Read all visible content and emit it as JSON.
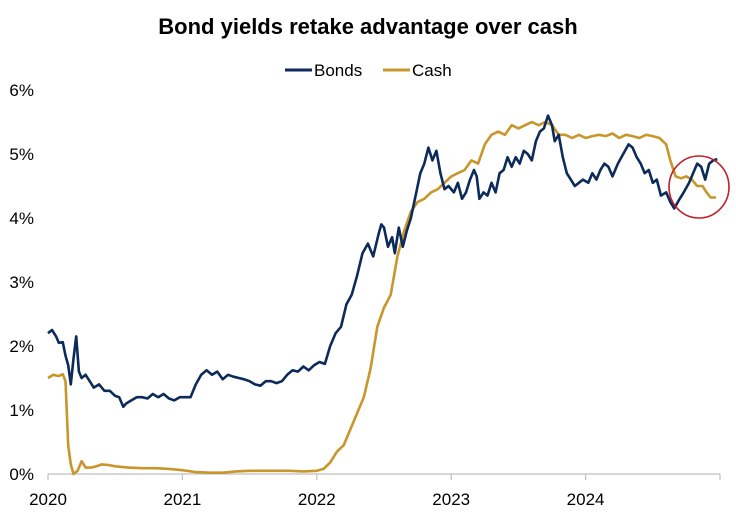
{
  "chart_data": {
    "type": "line",
    "title": "Bond yields retake advantage over cash",
    "xlabel": "",
    "ylabel": "",
    "x_ticks": [
      "2020",
      "2021",
      "2022",
      "2023",
      "2024"
    ],
    "y_ticks": [
      "0%",
      "1%",
      "2%",
      "3%",
      "4%",
      "5%",
      "6%"
    ],
    "xlim": [
      2020.0,
      2025.0
    ],
    "ylim": [
      0,
      6
    ],
    "grid": false,
    "legend_position": "top-center",
    "annotation": "red circle highlighting late-2024 crossover",
    "series": [
      {
        "name": "Bonds",
        "color": "#0c2a5a",
        "points": [
          [
            2020.0,
            2.2
          ],
          [
            2020.03,
            2.25
          ],
          [
            2020.06,
            2.15
          ],
          [
            2020.08,
            2.05
          ],
          [
            2020.11,
            2.06
          ],
          [
            2020.13,
            1.85
          ],
          [
            2020.15,
            1.7
          ],
          [
            2020.17,
            1.4
          ],
          [
            2020.19,
            1.8
          ],
          [
            2020.21,
            2.15
          ],
          [
            2020.23,
            1.6
          ],
          [
            2020.25,
            1.5
          ],
          [
            2020.28,
            1.55
          ],
          [
            2020.31,
            1.45
          ],
          [
            2020.34,
            1.35
          ],
          [
            2020.38,
            1.4
          ],
          [
            2020.42,
            1.3
          ],
          [
            2020.46,
            1.3
          ],
          [
            2020.5,
            1.22
          ],
          [
            2020.53,
            1.2
          ],
          [
            2020.56,
            1.05
          ],
          [
            2020.58,
            1.1
          ],
          [
            2020.62,
            1.15
          ],
          [
            2020.66,
            1.2
          ],
          [
            2020.7,
            1.2
          ],
          [
            2020.74,
            1.18
          ],
          [
            2020.78,
            1.25
          ],
          [
            2020.82,
            1.2
          ],
          [
            2020.86,
            1.25
          ],
          [
            2020.9,
            1.18
          ],
          [
            2020.94,
            1.15
          ],
          [
            2020.98,
            1.2
          ],
          [
            2021.02,
            1.2
          ],
          [
            2021.06,
            1.2
          ],
          [
            2021.1,
            1.4
          ],
          [
            2021.14,
            1.55
          ],
          [
            2021.18,
            1.62
          ],
          [
            2021.22,
            1.55
          ],
          [
            2021.26,
            1.6
          ],
          [
            2021.3,
            1.48
          ],
          [
            2021.34,
            1.55
          ],
          [
            2021.38,
            1.52
          ],
          [
            2021.42,
            1.5
          ],
          [
            2021.46,
            1.48
          ],
          [
            2021.5,
            1.45
          ],
          [
            2021.54,
            1.4
          ],
          [
            2021.58,
            1.38
          ],
          [
            2021.62,
            1.45
          ],
          [
            2021.66,
            1.45
          ],
          [
            2021.7,
            1.42
          ],
          [
            2021.74,
            1.45
          ],
          [
            2021.78,
            1.55
          ],
          [
            2021.82,
            1.62
          ],
          [
            2021.86,
            1.6
          ],
          [
            2021.9,
            1.68
          ],
          [
            2021.94,
            1.62
          ],
          [
            2021.98,
            1.7
          ],
          [
            2022.02,
            1.75
          ],
          [
            2022.06,
            1.72
          ],
          [
            2022.1,
            2.0
          ],
          [
            2022.14,
            2.2
          ],
          [
            2022.18,
            2.3
          ],
          [
            2022.22,
            2.65
          ],
          [
            2022.26,
            2.8
          ],
          [
            2022.3,
            3.1
          ],
          [
            2022.34,
            3.45
          ],
          [
            2022.38,
            3.6
          ],
          [
            2022.42,
            3.4
          ],
          [
            2022.46,
            3.75
          ],
          [
            2022.48,
            3.9
          ],
          [
            2022.5,
            3.85
          ],
          [
            2022.53,
            3.55
          ],
          [
            2022.56,
            3.7
          ],
          [
            2022.58,
            3.45
          ],
          [
            2022.61,
            3.85
          ],
          [
            2022.64,
            3.55
          ],
          [
            2022.67,
            3.8
          ],
          [
            2022.7,
            4.0
          ],
          [
            2022.74,
            4.4
          ],
          [
            2022.77,
            4.7
          ],
          [
            2022.8,
            4.85
          ],
          [
            2022.83,
            5.1
          ],
          [
            2022.86,
            4.9
          ],
          [
            2022.89,
            5.05
          ],
          [
            2022.92,
            4.7
          ],
          [
            2022.95,
            4.45
          ],
          [
            2022.98,
            4.5
          ],
          [
            2023.02,
            4.4
          ],
          [
            2023.05,
            4.55
          ],
          [
            2023.08,
            4.3
          ],
          [
            2023.11,
            4.4
          ],
          [
            2023.14,
            4.6
          ],
          [
            2023.17,
            4.75
          ],
          [
            2023.19,
            4.65
          ],
          [
            2023.21,
            4.3
          ],
          [
            2023.24,
            4.4
          ],
          [
            2023.27,
            4.35
          ],
          [
            2023.3,
            4.55
          ],
          [
            2023.33,
            4.4
          ],
          [
            2023.36,
            4.7
          ],
          [
            2023.39,
            4.75
          ],
          [
            2023.42,
            4.95
          ],
          [
            2023.45,
            4.8
          ],
          [
            2023.48,
            4.95
          ],
          [
            2023.51,
            4.85
          ],
          [
            2023.54,
            5.05
          ],
          [
            2023.57,
            5.0
          ],
          [
            2023.6,
            4.9
          ],
          [
            2023.63,
            5.2
          ],
          [
            2023.66,
            5.35
          ],
          [
            2023.69,
            5.4
          ],
          [
            2023.72,
            5.6
          ],
          [
            2023.75,
            5.45
          ],
          [
            2023.77,
            5.2
          ],
          [
            2023.8,
            5.3
          ],
          [
            2023.83,
            4.95
          ],
          [
            2023.86,
            4.7
          ],
          [
            2023.89,
            4.6
          ],
          [
            2023.92,
            4.5
          ],
          [
            2023.95,
            4.55
          ],
          [
            2023.98,
            4.6
          ],
          [
            2024.02,
            4.55
          ],
          [
            2024.05,
            4.7
          ],
          [
            2024.08,
            4.6
          ],
          [
            2024.11,
            4.75
          ],
          [
            2024.14,
            4.85
          ],
          [
            2024.17,
            4.8
          ],
          [
            2024.2,
            4.65
          ],
          [
            2024.24,
            4.85
          ],
          [
            2024.28,
            5.0
          ],
          [
            2024.32,
            5.15
          ],
          [
            2024.35,
            5.1
          ],
          [
            2024.38,
            4.95
          ],
          [
            2024.41,
            4.85
          ],
          [
            2024.44,
            4.7
          ],
          [
            2024.47,
            4.75
          ],
          [
            2024.5,
            4.55
          ],
          [
            2024.53,
            4.6
          ],
          [
            2024.56,
            4.35
          ],
          [
            2024.6,
            4.4
          ],
          [
            2024.63,
            4.25
          ],
          [
            2024.66,
            4.15
          ],
          [
            2024.7,
            4.3
          ],
          [
            2024.73,
            4.4
          ],
          [
            2024.77,
            4.55
          ],
          [
            2024.8,
            4.7
          ],
          [
            2024.83,
            4.85
          ],
          [
            2024.86,
            4.8
          ],
          [
            2024.89,
            4.6
          ],
          [
            2024.92,
            4.85
          ],
          [
            2024.95,
            4.9
          ],
          [
            2024.98,
            4.92
          ]
        ]
      },
      {
        "name": "Cash",
        "color": "#c8962b",
        "points": [
          [
            2020.0,
            1.5
          ],
          [
            2020.04,
            1.55
          ],
          [
            2020.08,
            1.53
          ],
          [
            2020.11,
            1.56
          ],
          [
            2020.13,
            1.45
          ],
          [
            2020.15,
            0.45
          ],
          [
            2020.17,
            0.15
          ],
          [
            2020.19,
            0.0
          ],
          [
            2020.22,
            0.05
          ],
          [
            2020.25,
            0.2
          ],
          [
            2020.28,
            0.1
          ],
          [
            2020.32,
            0.1
          ],
          [
            2020.36,
            0.12
          ],
          [
            2020.4,
            0.15
          ],
          [
            2020.45,
            0.14
          ],
          [
            2020.5,
            0.12
          ],
          [
            2020.6,
            0.1
          ],
          [
            2020.7,
            0.09
          ],
          [
            2020.8,
            0.09
          ],
          [
            2020.9,
            0.08
          ],
          [
            2021.0,
            0.06
          ],
          [
            2021.1,
            0.03
          ],
          [
            2021.2,
            0.02
          ],
          [
            2021.3,
            0.02
          ],
          [
            2021.4,
            0.04
          ],
          [
            2021.5,
            0.05
          ],
          [
            2021.6,
            0.05
          ],
          [
            2021.7,
            0.05
          ],
          [
            2021.8,
            0.05
          ],
          [
            2021.9,
            0.04
          ],
          [
            2022.0,
            0.05
          ],
          [
            2022.05,
            0.08
          ],
          [
            2022.1,
            0.18
          ],
          [
            2022.15,
            0.35
          ],
          [
            2022.2,
            0.45
          ],
          [
            2022.25,
            0.7
          ],
          [
            2022.3,
            0.95
          ],
          [
            2022.35,
            1.2
          ],
          [
            2022.4,
            1.65
          ],
          [
            2022.45,
            2.3
          ],
          [
            2022.5,
            2.6
          ],
          [
            2022.55,
            2.8
          ],
          [
            2022.6,
            3.4
          ],
          [
            2022.65,
            3.8
          ],
          [
            2022.7,
            4.1
          ],
          [
            2022.75,
            4.25
          ],
          [
            2022.8,
            4.3
          ],
          [
            2022.85,
            4.4
          ],
          [
            2022.9,
            4.45
          ],
          [
            2022.95,
            4.55
          ],
          [
            2023.0,
            4.65
          ],
          [
            2023.05,
            4.7
          ],
          [
            2023.1,
            4.75
          ],
          [
            2023.15,
            4.9
          ],
          [
            2023.2,
            4.85
          ],
          [
            2023.25,
            5.15
          ],
          [
            2023.3,
            5.3
          ],
          [
            2023.35,
            5.35
          ],
          [
            2023.4,
            5.3
          ],
          [
            2023.45,
            5.45
          ],
          [
            2023.5,
            5.4
          ],
          [
            2023.55,
            5.45
          ],
          [
            2023.6,
            5.5
          ],
          [
            2023.65,
            5.45
          ],
          [
            2023.7,
            5.5
          ],
          [
            2023.75,
            5.45
          ],
          [
            2023.8,
            5.3
          ],
          [
            2023.85,
            5.3
          ],
          [
            2023.9,
            5.25
          ],
          [
            2023.95,
            5.3
          ],
          [
            2024.0,
            5.25
          ],
          [
            2024.05,
            5.28
          ],
          [
            2024.1,
            5.3
          ],
          [
            2024.15,
            5.28
          ],
          [
            2024.2,
            5.32
          ],
          [
            2024.25,
            5.25
          ],
          [
            2024.3,
            5.3
          ],
          [
            2024.35,
            5.28
          ],
          [
            2024.4,
            5.25
          ],
          [
            2024.45,
            5.3
          ],
          [
            2024.5,
            5.28
          ],
          [
            2024.55,
            5.25
          ],
          [
            2024.6,
            5.15
          ],
          [
            2024.63,
            4.9
          ],
          [
            2024.67,
            4.65
          ],
          [
            2024.71,
            4.62
          ],
          [
            2024.75,
            4.65
          ],
          [
            2024.79,
            4.6
          ],
          [
            2024.83,
            4.5
          ],
          [
            2024.87,
            4.5
          ],
          [
            2024.9,
            4.4
          ],
          [
            2024.93,
            4.32
          ],
          [
            2024.97,
            4.32
          ]
        ]
      }
    ]
  }
}
